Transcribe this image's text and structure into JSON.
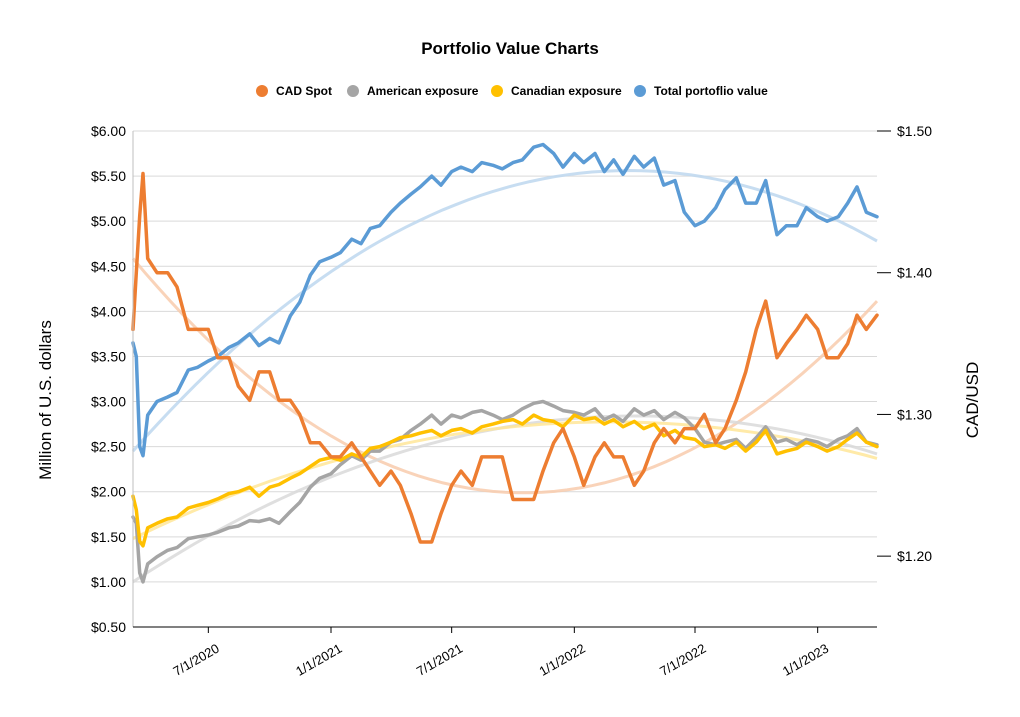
{
  "chart_data": {
    "type": "line",
    "title": "Portfolio Value Charts",
    "ylabel": "Million of U.S. dollars",
    "y2label": "CAD/USD",
    "ylim": [
      0.5,
      6.0
    ],
    "y2lim": [
      1.15,
      1.5
    ],
    "xlim": [
      "2020-03-10",
      "2023-03-31"
    ],
    "grid": true,
    "legend_position": "top",
    "yticks": [
      "$0.50",
      "$1.00",
      "$1.50",
      "$2.00",
      "$2.50",
      "$3.00",
      "$3.50",
      "$4.00",
      "$4.50",
      "$5.00",
      "$5.50",
      "$6.00"
    ],
    "y2ticks": [
      "$1.20",
      "$1.30",
      "$1.40",
      "$1.50"
    ],
    "xticks": [
      "7/1/2020",
      "1/1/2021",
      "7/1/2021",
      "1/1/2022",
      "7/1/2022",
      "1/1/2023"
    ],
    "series": [
      {
        "name": "CAD Spot",
        "axis": "right",
        "color": "#ED7D31",
        "x": [
          "2020-03-10",
          "2020-03-15",
          "2020-03-20",
          "2020-03-25",
          "2020-04-01",
          "2020-04-15",
          "2020-05-01",
          "2020-05-15",
          "2020-06-01",
          "2020-06-15",
          "2020-07-01",
          "2020-07-15",
          "2020-08-01",
          "2020-08-15",
          "2020-09-01",
          "2020-09-15",
          "2020-10-01",
          "2020-10-15",
          "2020-11-01",
          "2020-11-15",
          "2020-12-01",
          "2020-12-15",
          "2021-01-01",
          "2021-01-15",
          "2021-02-01",
          "2021-02-15",
          "2021-03-01",
          "2021-03-15",
          "2021-04-01",
          "2021-04-15",
          "2021-05-01",
          "2021-05-15",
          "2021-06-01",
          "2021-06-15",
          "2021-07-01",
          "2021-07-15",
          "2021-08-01",
          "2021-08-15",
          "2021-09-01",
          "2021-09-15",
          "2021-10-01",
          "2021-10-15",
          "2021-11-01",
          "2021-11-15",
          "2021-12-01",
          "2021-12-15",
          "2022-01-01",
          "2022-01-15",
          "2022-02-01",
          "2022-02-15",
          "2022-03-01",
          "2022-03-15",
          "2022-04-01",
          "2022-04-15",
          "2022-05-01",
          "2022-05-15",
          "2022-06-01",
          "2022-06-15",
          "2022-07-01",
          "2022-07-15",
          "2022-08-01",
          "2022-08-15",
          "2022-09-01",
          "2022-09-15",
          "2022-10-01",
          "2022-10-15",
          "2022-11-01",
          "2022-11-15",
          "2022-12-01",
          "2022-12-15",
          "2023-01-01",
          "2023-01-15",
          "2023-02-01",
          "2023-02-15",
          "2023-03-01",
          "2023-03-15",
          "2023-03-31"
        ],
        "values": [
          1.36,
          1.4,
          1.44,
          1.47,
          1.41,
          1.4,
          1.4,
          1.39,
          1.36,
          1.36,
          1.36,
          1.34,
          1.34,
          1.32,
          1.31,
          1.33,
          1.33,
          1.31,
          1.31,
          1.3,
          1.28,
          1.28,
          1.27,
          1.27,
          1.28,
          1.27,
          1.26,
          1.25,
          1.26,
          1.25,
          1.23,
          1.21,
          1.21,
          1.23,
          1.25,
          1.26,
          1.25,
          1.27,
          1.27,
          1.27,
          1.24,
          1.24,
          1.24,
          1.26,
          1.28,
          1.29,
          1.27,
          1.25,
          1.27,
          1.28,
          1.27,
          1.27,
          1.25,
          1.26,
          1.28,
          1.29,
          1.28,
          1.29,
          1.29,
          1.3,
          1.28,
          1.29,
          1.31,
          1.33,
          1.36,
          1.38,
          1.34,
          1.35,
          1.36,
          1.37,
          1.36,
          1.34,
          1.34,
          1.35,
          1.37,
          1.36,
          1.37
        ]
      },
      {
        "name": "American exposure",
        "axis": "left",
        "color": "#A5A5A5",
        "x": [
          "2020-03-10",
          "2020-03-15",
          "2020-03-20",
          "2020-03-25",
          "2020-04-01",
          "2020-04-15",
          "2020-05-01",
          "2020-05-15",
          "2020-06-01",
          "2020-06-15",
          "2020-07-01",
          "2020-07-15",
          "2020-08-01",
          "2020-08-15",
          "2020-09-01",
          "2020-09-15",
          "2020-10-01",
          "2020-10-15",
          "2020-11-01",
          "2020-11-15",
          "2020-12-01",
          "2020-12-15",
          "2021-01-01",
          "2021-01-15",
          "2021-02-01",
          "2021-02-15",
          "2021-03-01",
          "2021-03-15",
          "2021-04-01",
          "2021-04-15",
          "2021-05-01",
          "2021-05-15",
          "2021-06-01",
          "2021-06-15",
          "2021-07-01",
          "2021-07-15",
          "2021-08-01",
          "2021-08-15",
          "2021-09-01",
          "2021-09-15",
          "2021-10-01",
          "2021-10-15",
          "2021-11-01",
          "2021-11-15",
          "2021-12-01",
          "2021-12-15",
          "2022-01-01",
          "2022-01-15",
          "2022-02-01",
          "2022-02-15",
          "2022-03-01",
          "2022-03-15",
          "2022-04-01",
          "2022-04-15",
          "2022-05-01",
          "2022-05-15",
          "2022-06-01",
          "2022-06-15",
          "2022-07-01",
          "2022-07-15",
          "2022-08-01",
          "2022-08-15",
          "2022-09-01",
          "2022-09-15",
          "2022-10-01",
          "2022-10-15",
          "2022-11-01",
          "2022-11-15",
          "2022-12-01",
          "2022-12-15",
          "2023-01-01",
          "2023-01-15",
          "2023-02-01",
          "2023-02-15",
          "2023-03-01",
          "2023-03-15",
          "2023-03-31"
        ],
        "values": [
          1.72,
          1.65,
          1.1,
          1.0,
          1.2,
          1.28,
          1.35,
          1.38,
          1.48,
          1.5,
          1.52,
          1.55,
          1.6,
          1.62,
          1.68,
          1.67,
          1.7,
          1.65,
          1.78,
          1.88,
          2.05,
          2.15,
          2.2,
          2.3,
          2.4,
          2.35,
          2.45,
          2.45,
          2.55,
          2.58,
          2.68,
          2.75,
          2.85,
          2.75,
          2.85,
          2.82,
          2.88,
          2.9,
          2.85,
          2.8,
          2.85,
          2.92,
          2.98,
          3.0,
          2.95,
          2.9,
          2.88,
          2.85,
          2.92,
          2.8,
          2.85,
          2.78,
          2.92,
          2.85,
          2.9,
          2.8,
          2.88,
          2.82,
          2.7,
          2.55,
          2.52,
          2.55,
          2.58,
          2.48,
          2.6,
          2.72,
          2.55,
          2.58,
          2.52,
          2.58,
          2.55,
          2.5,
          2.58,
          2.62,
          2.7,
          2.55,
          2.52
        ]
      },
      {
        "name": "Canadian exposure",
        "axis": "left",
        "color": "#FFC000",
        "x": [
          "2020-03-10",
          "2020-03-15",
          "2020-03-20",
          "2020-03-25",
          "2020-04-01",
          "2020-04-15",
          "2020-05-01",
          "2020-05-15",
          "2020-06-01",
          "2020-06-15",
          "2020-07-01",
          "2020-07-15",
          "2020-08-01",
          "2020-08-15",
          "2020-09-01",
          "2020-09-15",
          "2020-10-01",
          "2020-10-15",
          "2020-11-01",
          "2020-11-15",
          "2020-12-01",
          "2020-12-15",
          "2021-01-01",
          "2021-01-15",
          "2021-02-01",
          "2021-02-15",
          "2021-03-01",
          "2021-03-15",
          "2021-04-01",
          "2021-04-15",
          "2021-05-01",
          "2021-05-15",
          "2021-06-01",
          "2021-06-15",
          "2021-07-01",
          "2021-07-15",
          "2021-08-01",
          "2021-08-15",
          "2021-09-01",
          "2021-09-15",
          "2021-10-01",
          "2021-10-15",
          "2021-11-01",
          "2021-11-15",
          "2021-12-01",
          "2021-12-15",
          "2022-01-01",
          "2022-01-15",
          "2022-02-01",
          "2022-02-15",
          "2022-03-01",
          "2022-03-15",
          "2022-04-01",
          "2022-04-15",
          "2022-05-01",
          "2022-05-15",
          "2022-06-01",
          "2022-06-15",
          "2022-07-01",
          "2022-07-15",
          "2022-08-01",
          "2022-08-15",
          "2022-09-01",
          "2022-09-15",
          "2022-10-01",
          "2022-10-15",
          "2022-11-01",
          "2022-11-15",
          "2022-12-01",
          "2022-12-15",
          "2023-01-01",
          "2023-01-15",
          "2023-02-01",
          "2023-02-15",
          "2023-03-01",
          "2023-03-15",
          "2023-03-31"
        ],
        "values": [
          1.95,
          1.8,
          1.45,
          1.4,
          1.6,
          1.65,
          1.7,
          1.72,
          1.82,
          1.85,
          1.88,
          1.92,
          1.98,
          2.0,
          2.05,
          1.95,
          2.05,
          2.08,
          2.15,
          2.2,
          2.28,
          2.35,
          2.38,
          2.35,
          2.42,
          2.38,
          2.48,
          2.5,
          2.55,
          2.6,
          2.62,
          2.65,
          2.68,
          2.62,
          2.68,
          2.7,
          2.65,
          2.72,
          2.75,
          2.78,
          2.8,
          2.75,
          2.85,
          2.8,
          2.78,
          2.72,
          2.85,
          2.8,
          2.82,
          2.75,
          2.8,
          2.72,
          2.78,
          2.7,
          2.75,
          2.62,
          2.68,
          2.6,
          2.58,
          2.5,
          2.52,
          2.48,
          2.55,
          2.45,
          2.55,
          2.68,
          2.42,
          2.45,
          2.48,
          2.55,
          2.5,
          2.45,
          2.5,
          2.58,
          2.65,
          2.55,
          2.5
        ]
      },
      {
        "name": "Total portoflio value",
        "axis": "left",
        "color": "#5B9BD5",
        "x": [
          "2020-03-10",
          "2020-03-15",
          "2020-03-20",
          "2020-03-25",
          "2020-04-01",
          "2020-04-15",
          "2020-05-01",
          "2020-05-15",
          "2020-06-01",
          "2020-06-15",
          "2020-07-01",
          "2020-07-15",
          "2020-08-01",
          "2020-08-15",
          "2020-09-01",
          "2020-09-15",
          "2020-10-01",
          "2020-10-15",
          "2020-11-01",
          "2020-11-15",
          "2020-12-01",
          "2020-12-15",
          "2021-01-01",
          "2021-01-15",
          "2021-02-01",
          "2021-02-15",
          "2021-03-01",
          "2021-03-15",
          "2021-04-01",
          "2021-04-15",
          "2021-05-01",
          "2021-05-15",
          "2021-06-01",
          "2021-06-15",
          "2021-07-01",
          "2021-07-15",
          "2021-08-01",
          "2021-08-15",
          "2021-09-01",
          "2021-09-15",
          "2021-10-01",
          "2021-10-15",
          "2021-11-01",
          "2021-11-15",
          "2021-12-01",
          "2021-12-15",
          "2022-01-01",
          "2022-01-15",
          "2022-02-01",
          "2022-02-15",
          "2022-03-01",
          "2022-03-15",
          "2022-04-01",
          "2022-04-15",
          "2022-05-01",
          "2022-05-15",
          "2022-06-01",
          "2022-06-15",
          "2022-07-01",
          "2022-07-15",
          "2022-08-01",
          "2022-08-15",
          "2022-09-01",
          "2022-09-15",
          "2022-10-01",
          "2022-10-15",
          "2022-11-01",
          "2022-11-15",
          "2022-12-01",
          "2022-12-15",
          "2023-01-01",
          "2023-01-15",
          "2023-02-01",
          "2023-02-15",
          "2023-03-01",
          "2023-03-15",
          "2023-03-31"
        ],
        "values": [
          3.65,
          3.5,
          2.5,
          2.4,
          2.85,
          3.0,
          3.05,
          3.1,
          3.35,
          3.38,
          3.45,
          3.5,
          3.6,
          3.65,
          3.75,
          3.62,
          3.7,
          3.65,
          3.95,
          4.1,
          4.4,
          4.55,
          4.6,
          4.65,
          4.8,
          4.75,
          4.92,
          4.95,
          5.1,
          5.2,
          5.3,
          5.38,
          5.5,
          5.4,
          5.55,
          5.6,
          5.55,
          5.65,
          5.62,
          5.58,
          5.65,
          5.68,
          5.82,
          5.85,
          5.75,
          5.6,
          5.75,
          5.65,
          5.75,
          5.55,
          5.68,
          5.52,
          5.72,
          5.6,
          5.7,
          5.4,
          5.45,
          5.1,
          4.95,
          5.0,
          5.15,
          5.35,
          5.48,
          5.2,
          5.2,
          5.45,
          4.85,
          4.95,
          4.95,
          5.15,
          5.05,
          5.0,
          5.05,
          5.2,
          5.38,
          5.1,
          5.05
        ]
      }
    ],
    "trendlines": [
      {
        "series": "CAD Spot",
        "color": "#F8CBAD",
        "x": [
          "2020-03-10",
          "2021-09-21",
          "2023-03-31"
        ],
        "values": [
          1.41,
          1.245,
          1.38
        ]
      },
      {
        "series": "American exposure",
        "color": "#D9D9D9",
        "x": [
          "2020-03-10",
          "2021-11-18",
          "2023-03-31"
        ],
        "values": [
          1.0,
          2.78,
          2.42
        ]
      },
      {
        "series": "Canadian exposure",
        "color": "#FFE699",
        "x": [
          "2020-03-10",
          "2021-11-18",
          "2023-03-31"
        ],
        "values": [
          1.48,
          2.75,
          2.37
        ]
      },
      {
        "series": "Total portoflio value",
        "color": "#BDD7EE",
        "x": [
          "2020-03-10",
          "2022-02-05",
          "2023-03-31"
        ],
        "values": [
          2.45,
          5.55,
          4.78
        ]
      }
    ]
  }
}
